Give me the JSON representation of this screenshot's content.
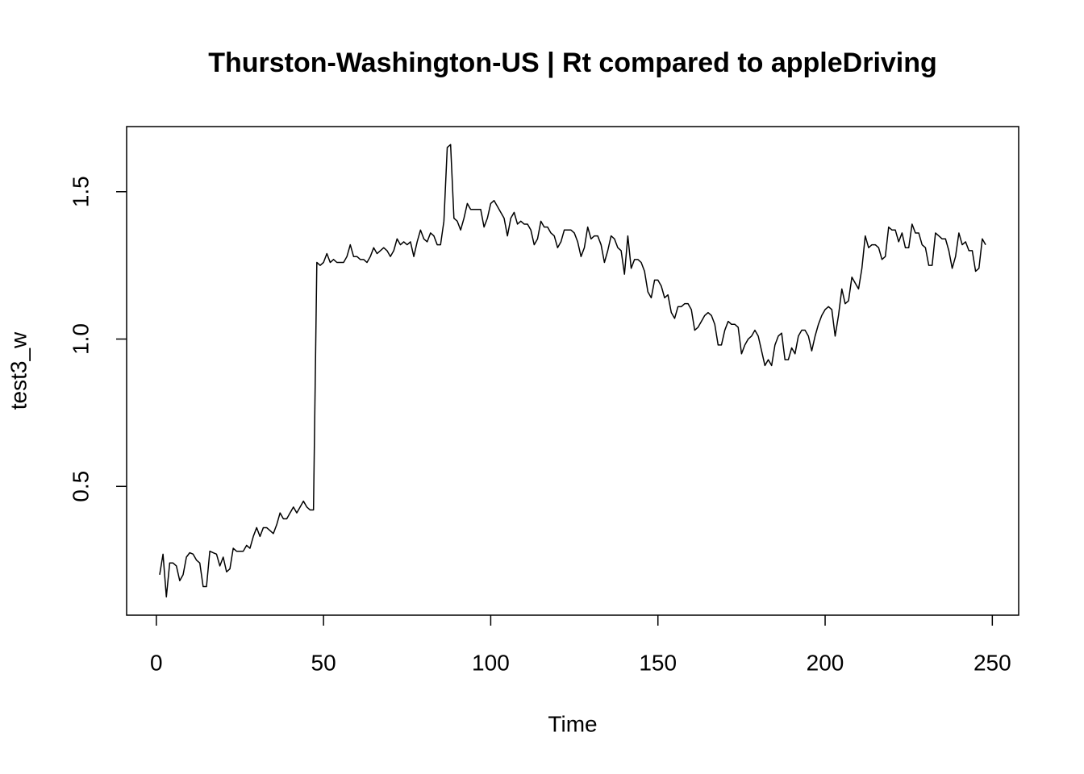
{
  "chart_data": {
    "type": "line",
    "title": "Thurston-Washington-US | Rt compared to appleDriving",
    "xlabel": "Time",
    "ylabel": "test3_w",
    "color": "#000000",
    "xlim": [
      -8.88,
      257.88
    ],
    "ylim": [
      0.063,
      1.721
    ],
    "xticks": [
      0,
      50,
      100,
      150,
      200,
      250
    ],
    "yticks": [
      0.5,
      {
        "value": 1,
        "label": "1.0"
      },
      1.5
    ],
    "x": [
      1,
      2,
      3,
      4,
      5,
      6,
      7,
      8,
      9,
      10,
      11,
      12,
      13,
      14,
      15,
      16,
      17,
      18,
      19,
      20,
      21,
      22,
      23,
      24,
      25,
      26,
      27,
      28,
      29,
      30,
      31,
      32,
      33,
      34,
      35,
      36,
      37,
      38,
      39,
      40,
      41,
      42,
      43,
      44,
      45,
      46,
      47,
      48,
      49,
      50,
      51,
      52,
      53,
      54,
      55,
      56,
      57,
      58,
      59,
      60,
      61,
      62,
      63,
      64,
      65,
      66,
      67,
      68,
      69,
      70,
      71,
      72,
      73,
      74,
      75,
      76,
      77,
      78,
      79,
      80,
      81,
      82,
      83,
      84,
      85,
      86,
      87,
      88,
      89,
      90,
      91,
      92,
      93,
      94,
      95,
      96,
      97,
      98,
      99,
      100,
      101,
      102,
      103,
      104,
      105,
      106,
      107,
      108,
      109,
      110,
      111,
      112,
      113,
      114,
      115,
      116,
      117,
      118,
      119,
      120,
      121,
      122,
      123,
      124,
      125,
      126,
      127,
      128,
      129,
      130,
      131,
      132,
      133,
      134,
      135,
      136,
      137,
      138,
      139,
      140,
      141,
      142,
      143,
      144,
      145,
      146,
      147,
      148,
      149,
      150,
      151,
      152,
      153,
      154,
      155,
      156,
      157,
      158,
      159,
      160,
      161,
      162,
      163,
      164,
      165,
      166,
      167,
      168,
      169,
      170,
      171,
      172,
      173,
      174,
      175,
      176,
      177,
      178,
      179,
      180,
      181,
      182,
      183,
      184,
      185,
      186,
      187,
      188,
      189,
      190,
      191,
      192,
      193,
      194,
      195,
      196,
      197,
      198,
      199,
      200,
      201,
      202,
      203,
      204,
      205,
      206,
      207,
      208,
      209,
      210,
      211,
      212,
      213,
      214,
      215,
      216,
      217,
      218,
      219,
      220,
      221,
      222,
      223,
      224,
      225,
      226,
      227,
      228,
      229,
      230,
      231,
      232,
      233,
      234,
      235,
      236,
      237,
      238,
      239,
      240,
      241,
      242,
      243,
      244,
      245,
      246,
      247,
      248
    ],
    "values": [
      0.2,
      0.27,
      0.125,
      0.24,
      0.24,
      0.23,
      0.18,
      0.2,
      0.26,
      0.275,
      0.27,
      0.25,
      0.24,
      0.16,
      0.16,
      0.28,
      0.275,
      0.27,
      0.23,
      0.26,
      0.21,
      0.22,
      0.29,
      0.28,
      0.28,
      0.28,
      0.3,
      0.29,
      0.33,
      0.36,
      0.33,
      0.36,
      0.36,
      0.35,
      0.34,
      0.37,
      0.41,
      0.39,
      0.39,
      0.41,
      0.43,
      0.41,
      0.43,
      0.45,
      0.43,
      0.42,
      0.42,
      1.26,
      1.25,
      1.26,
      1.29,
      1.26,
      1.27,
      1.26,
      1.26,
      1.26,
      1.28,
      1.32,
      1.28,
      1.28,
      1.27,
      1.27,
      1.26,
      1.28,
      1.31,
      1.29,
      1.3,
      1.31,
      1.3,
      1.28,
      1.3,
      1.34,
      1.32,
      1.33,
      1.32,
      1.33,
      1.28,
      1.33,
      1.37,
      1.34,
      1.33,
      1.36,
      1.35,
      1.32,
      1.32,
      1.4,
      1.65,
      1.66,
      1.41,
      1.4,
      1.37,
      1.41,
      1.46,
      1.44,
      1.44,
      1.44,
      1.44,
      1.38,
      1.41,
      1.46,
      1.47,
      1.45,
      1.43,
      1.41,
      1.35,
      1.41,
      1.43,
      1.39,
      1.4,
      1.39,
      1.39,
      1.37,
      1.32,
      1.34,
      1.4,
      1.38,
      1.38,
      1.36,
      1.35,
      1.31,
      1.33,
      1.37,
      1.37,
      1.37,
      1.36,
      1.33,
      1.28,
      1.31,
      1.38,
      1.34,
      1.35,
      1.35,
      1.32,
      1.26,
      1.3,
      1.35,
      1.34,
      1.31,
      1.3,
      1.22,
      1.35,
      1.24,
      1.27,
      1.27,
      1.26,
      1.23,
      1.16,
      1.14,
      1.2,
      1.2,
      1.18,
      1.14,
      1.15,
      1.09,
      1.07,
      1.11,
      1.11,
      1.12,
      1.12,
      1.1,
      1.03,
      1.04,
      1.06,
      1.08,
      1.09,
      1.08,
      1.05,
      0.98,
      0.98,
      1.03,
      1.06,
      1.05,
      1.05,
      1.04,
      0.95,
      0.98,
      1.0,
      1.01,
      1.03,
      1.01,
      0.96,
      0.91,
      0.93,
      0.91,
      0.98,
      1.01,
      1.02,
      0.93,
      0.93,
      0.97,
      0.95,
      1.01,
      1.03,
      1.03,
      1.01,
      0.96,
      1.01,
      1.05,
      1.08,
      1.1,
      1.11,
      1.1,
      1.01,
      1.08,
      1.17,
      1.12,
      1.13,
      1.21,
      1.19,
      1.17,
      1.24,
      1.35,
      1.31,
      1.32,
      1.32,
      1.31,
      1.27,
      1.28,
      1.38,
      1.37,
      1.37,
      1.33,
      1.36,
      1.31,
      1.31,
      1.39,
      1.36,
      1.36,
      1.32,
      1.31,
      1.25,
      1.25,
      1.36,
      1.35,
      1.34,
      1.34,
      1.3,
      1.24,
      1.28,
      1.36,
      1.32,
      1.33,
      1.3,
      1.3,
      1.23,
      1.24,
      1.34,
      1.32
    ]
  }
}
